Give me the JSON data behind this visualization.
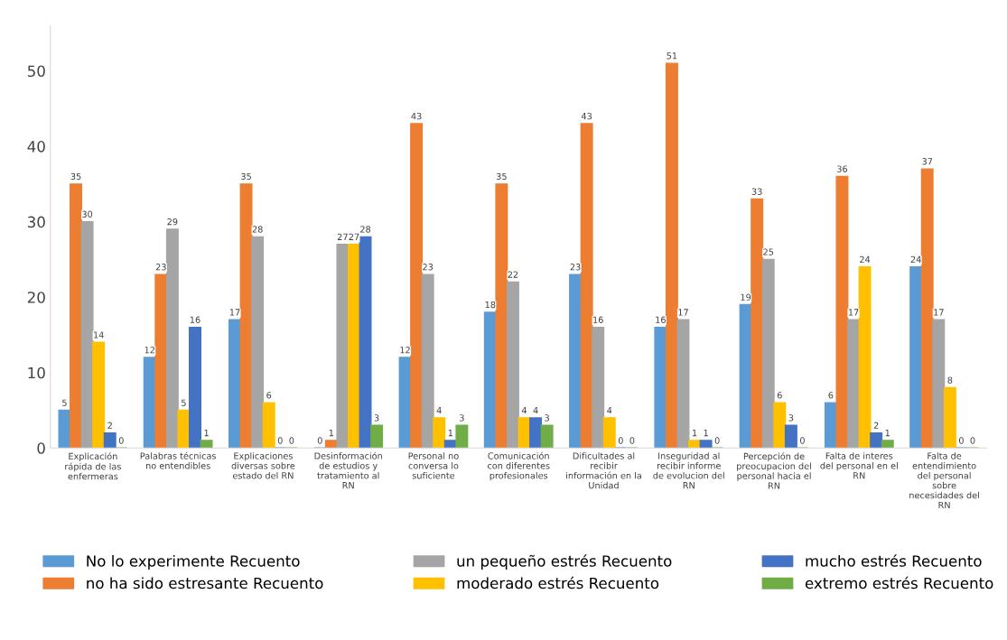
{
  "chart_data": {
    "type": "bar",
    "categories": [
      "Explicación\nrápida de las\nenfermeras",
      "Palabras técnicas\nno entendibles",
      "Explicaciones\ndiversas sobre\nestado del RN",
      "Desinformación\nde estudios y\ntratamiento al\nRN",
      "Personal no\nconversa lo\nsuficiente",
      "Comunicación\ncon diferentes\nprofesionales",
      "Dificultades al\nrecibir\ninformación en la\nUnidad",
      "Inseguridad al\nrecibir informe\nde evolucion del\nRN",
      "Percepción de\npreocupacion del\npersonal hacia el\nRN",
      "Falta de interes\ndel personal en el\nRN",
      "Falta de\nentendimiento\ndel personal\nsobre\nnecesidades del\nRN"
    ],
    "series": [
      {
        "name": "No lo experimente Recuento",
        "color": "#5b9bd5",
        "values": [
          5,
          12,
          17,
          0,
          12,
          18,
          23,
          16,
          19,
          6,
          24
        ]
      },
      {
        "name": "no ha sido estresante Recuento",
        "color": "#ed7d31",
        "values": [
          35,
          23,
          35,
          1,
          43,
          35,
          43,
          51,
          33,
          36,
          37
        ]
      },
      {
        "name": "un pequeño estrés Recuento",
        "color": "#a5a5a5",
        "values": [
          30,
          29,
          28,
          27,
          23,
          22,
          16,
          17,
          25,
          17,
          17
        ]
      },
      {
        "name": "moderado estrés Recuento",
        "color": "#ffc000",
        "values": [
          14,
          5,
          6,
          27,
          4,
          4,
          4,
          1,
          6,
          24,
          8
        ]
      },
      {
        "name": "mucho estrés Recuento",
        "color": "#4472c4",
        "values": [
          2,
          16,
          0,
          28,
          1,
          4,
          0,
          1,
          3,
          2,
          0
        ]
      },
      {
        "name": "extremo estrés Recuento",
        "color": "#70ad47",
        "values": [
          0,
          1,
          0,
          3,
          3,
          3,
          0,
          0,
          0,
          1,
          0
        ]
      }
    ],
    "ylim": [
      0,
      56
    ],
    "yticks": [
      0,
      10,
      20,
      30,
      40,
      50
    ],
    "data_labels": true,
    "grid": false,
    "legend": "bottom"
  }
}
